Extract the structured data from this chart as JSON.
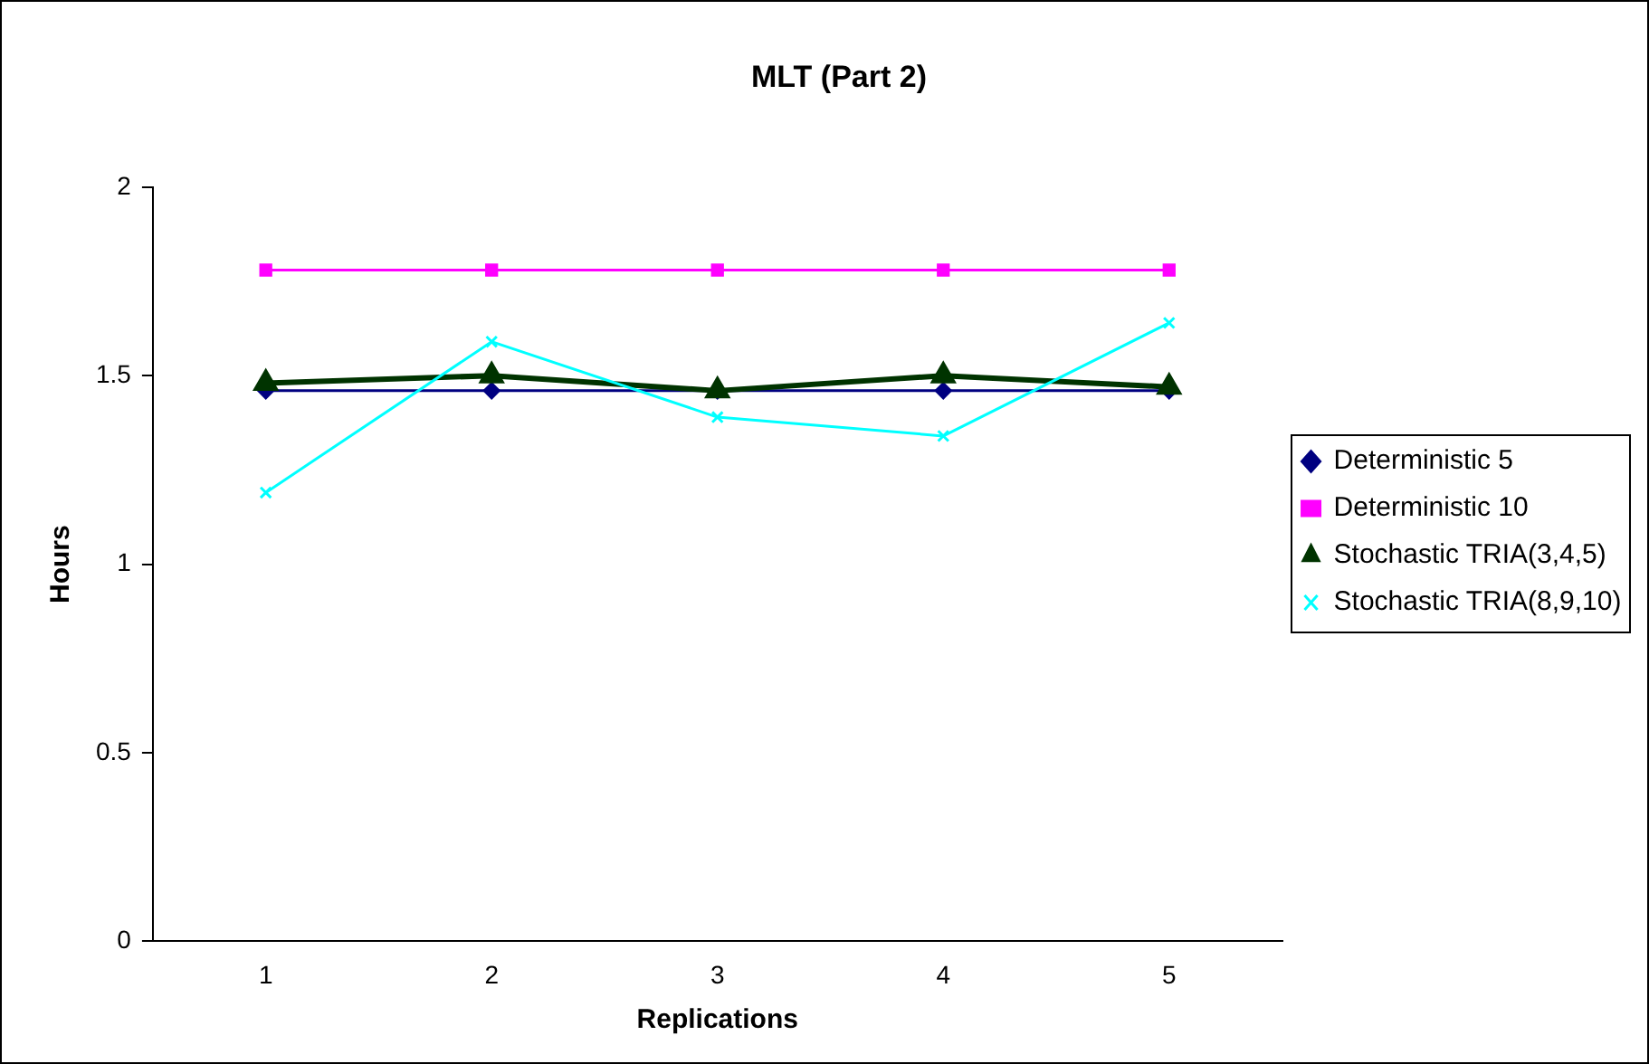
{
  "chart_data": {
    "type": "line",
    "title": "MLT (Part 2)",
    "xlabel": "Replications",
    "ylabel": "Hours",
    "categories": [
      "1",
      "2",
      "3",
      "4",
      "5"
    ],
    "series": [
      {
        "name": "Deterministic 5",
        "color": "#000080",
        "values": [
          1.46,
          1.46,
          1.46,
          1.46,
          1.46
        ],
        "marker": "diamond"
      },
      {
        "name": "Deterministic 10",
        "color": "#ff00ff",
        "values": [
          1.78,
          1.78,
          1.78,
          1.78,
          1.78
        ],
        "marker": "square"
      },
      {
        "name": "Stochastic TRIA(3,4,5)",
        "color": "#003300",
        "values": [
          1.48,
          1.5,
          1.46,
          1.5,
          1.47
        ],
        "marker": "triangle"
      },
      {
        "name": "Stochastic TRIA(8,9,10)",
        "color": "#00ffff",
        "values": [
          1.19,
          1.59,
          1.39,
          1.34,
          1.64
        ],
        "marker": "cross"
      }
    ],
    "ylim": [
      0,
      2
    ],
    "yticks": [
      0,
      0.5,
      1,
      1.5,
      2
    ],
    "grid": false,
    "legend": "right",
    "line_style": "solid"
  }
}
